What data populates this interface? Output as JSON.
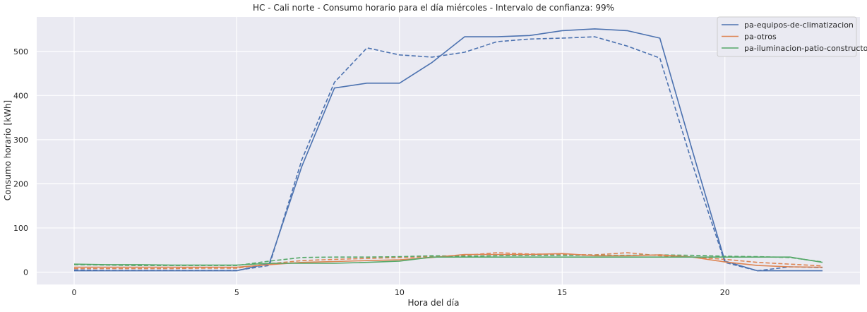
{
  "chart_data": {
    "type": "line",
    "title": "HC - Cali norte - Consumo horario para el día miércoles - Intervalo de confianza: 99%",
    "xlabel": "Hora del día",
    "ylabel": "Consumo horario [kWh]",
    "xlim": [
      -1.15,
      24.15
    ],
    "ylim": [
      -28,
      578
    ],
    "xticks": [
      0,
      5,
      10,
      15,
      20
    ],
    "yticks": [
      0,
      100,
      200,
      300,
      400,
      500
    ],
    "grid": true,
    "legend_position": "top-right",
    "background_color": "#eaeaf2",
    "x": [
      0,
      1,
      2,
      3,
      4,
      5,
      6,
      7,
      8,
      9,
      10,
      11,
      12,
      13,
      14,
      15,
      16,
      17,
      18,
      19,
      20,
      21,
      22,
      23
    ],
    "series": [
      {
        "name": "pa-equipos-de-climatizacion",
        "color": "#4c72b0",
        "values": [
          3,
          3,
          3,
          3,
          3,
          3,
          20,
          240,
          417,
          428,
          428,
          475,
          533,
          533,
          536,
          547,
          551,
          547,
          530,
          275,
          25,
          3,
          3,
          3
        ],
        "dashed_values": [
          5,
          4,
          4,
          4,
          4,
          4,
          15,
          255,
          430,
          508,
          492,
          487,
          498,
          522,
          528,
          530,
          533,
          512,
          485,
          245,
          22,
          3,
          12,
          10
        ]
      },
      {
        "name": "pa-otros",
        "color": "#dd8452",
        "values": [
          11,
          11,
          11,
          11,
          11,
          11,
          17,
          22,
          24,
          26,
          28,
          33,
          40,
          40,
          40,
          42,
          37,
          37,
          39,
          34,
          23,
          15,
          12,
          11
        ],
        "dashed_values": [
          8,
          8,
          8,
          8,
          9,
          9,
          19,
          26,
          29,
          31,
          33,
          35,
          38,
          44,
          41,
          40,
          39,
          44,
          37,
          34,
          29,
          22,
          18,
          14
        ]
      },
      {
        "name": "pa-iluminacion-patio-constructor",
        "color": "#55a868",
        "values": [
          18,
          17,
          17,
          16,
          16,
          16,
          20,
          20,
          20,
          22,
          25,
          34,
          34,
          34,
          34,
          34,
          34,
          34,
          34,
          34,
          34,
          34,
          34,
          22
        ],
        "dashed_values": [
          17,
          16,
          15,
          15,
          15,
          15,
          25,
          33,
          34,
          34,
          35,
          37,
          36,
          37,
          38,
          38,
          38,
          38,
          39,
          38,
          36,
          35,
          33,
          23
        ]
      }
    ]
  }
}
